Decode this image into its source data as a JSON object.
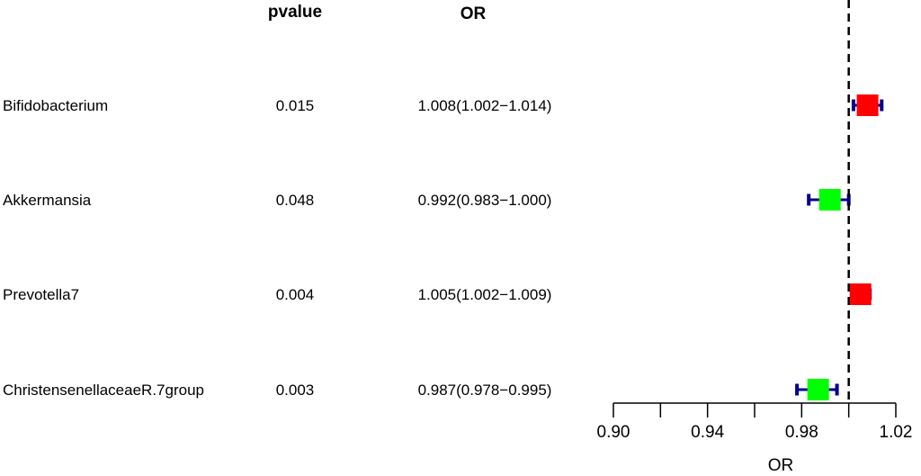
{
  "chart_data": {
    "type": "forest",
    "columns": {
      "pvalue_header": "pvalue",
      "or_header": "OR"
    },
    "rows": [
      {
        "name": "Bifidobacterium",
        "pvalue": "0.015",
        "or_text": "1.008(1.002−1.014)",
        "or": 1.008,
        "lower": 1.002,
        "upper": 1.014,
        "color": "#ff0000"
      },
      {
        "name": "Akkermansia",
        "pvalue": "0.048",
        "or_text": "0.992(0.983−1.000)",
        "or": 0.992,
        "lower": 0.983,
        "upper": 1.0,
        "color": "#00ff00"
      },
      {
        "name": "Prevotella7",
        "pvalue": "0.004",
        "or_text": "1.005(1.002−1.009)",
        "or": 1.005,
        "lower": 1.002,
        "upper": 1.009,
        "color": "#ff0000"
      },
      {
        "name": "ChristensenellaceaeR.7group",
        "pvalue": "0.003",
        "or_text": "0.987(0.978−0.995)",
        "or": 0.987,
        "lower": 0.978,
        "upper": 0.995,
        "color": "#00ff00"
      }
    ],
    "xlabel": "OR",
    "xlim": [
      0.9,
      1.02
    ],
    "ticks": [
      0.9,
      0.92,
      0.94,
      0.96,
      0.98,
      1.0,
      1.02
    ],
    "tick_labels": [
      "0.90",
      "",
      "0.94",
      "",
      "0.98",
      "",
      "1.02"
    ],
    "reference_line": 1.0,
    "colors": {
      "ci_line": "#00008b",
      "reference_line": "#000000",
      "axis": "#000000"
    }
  }
}
